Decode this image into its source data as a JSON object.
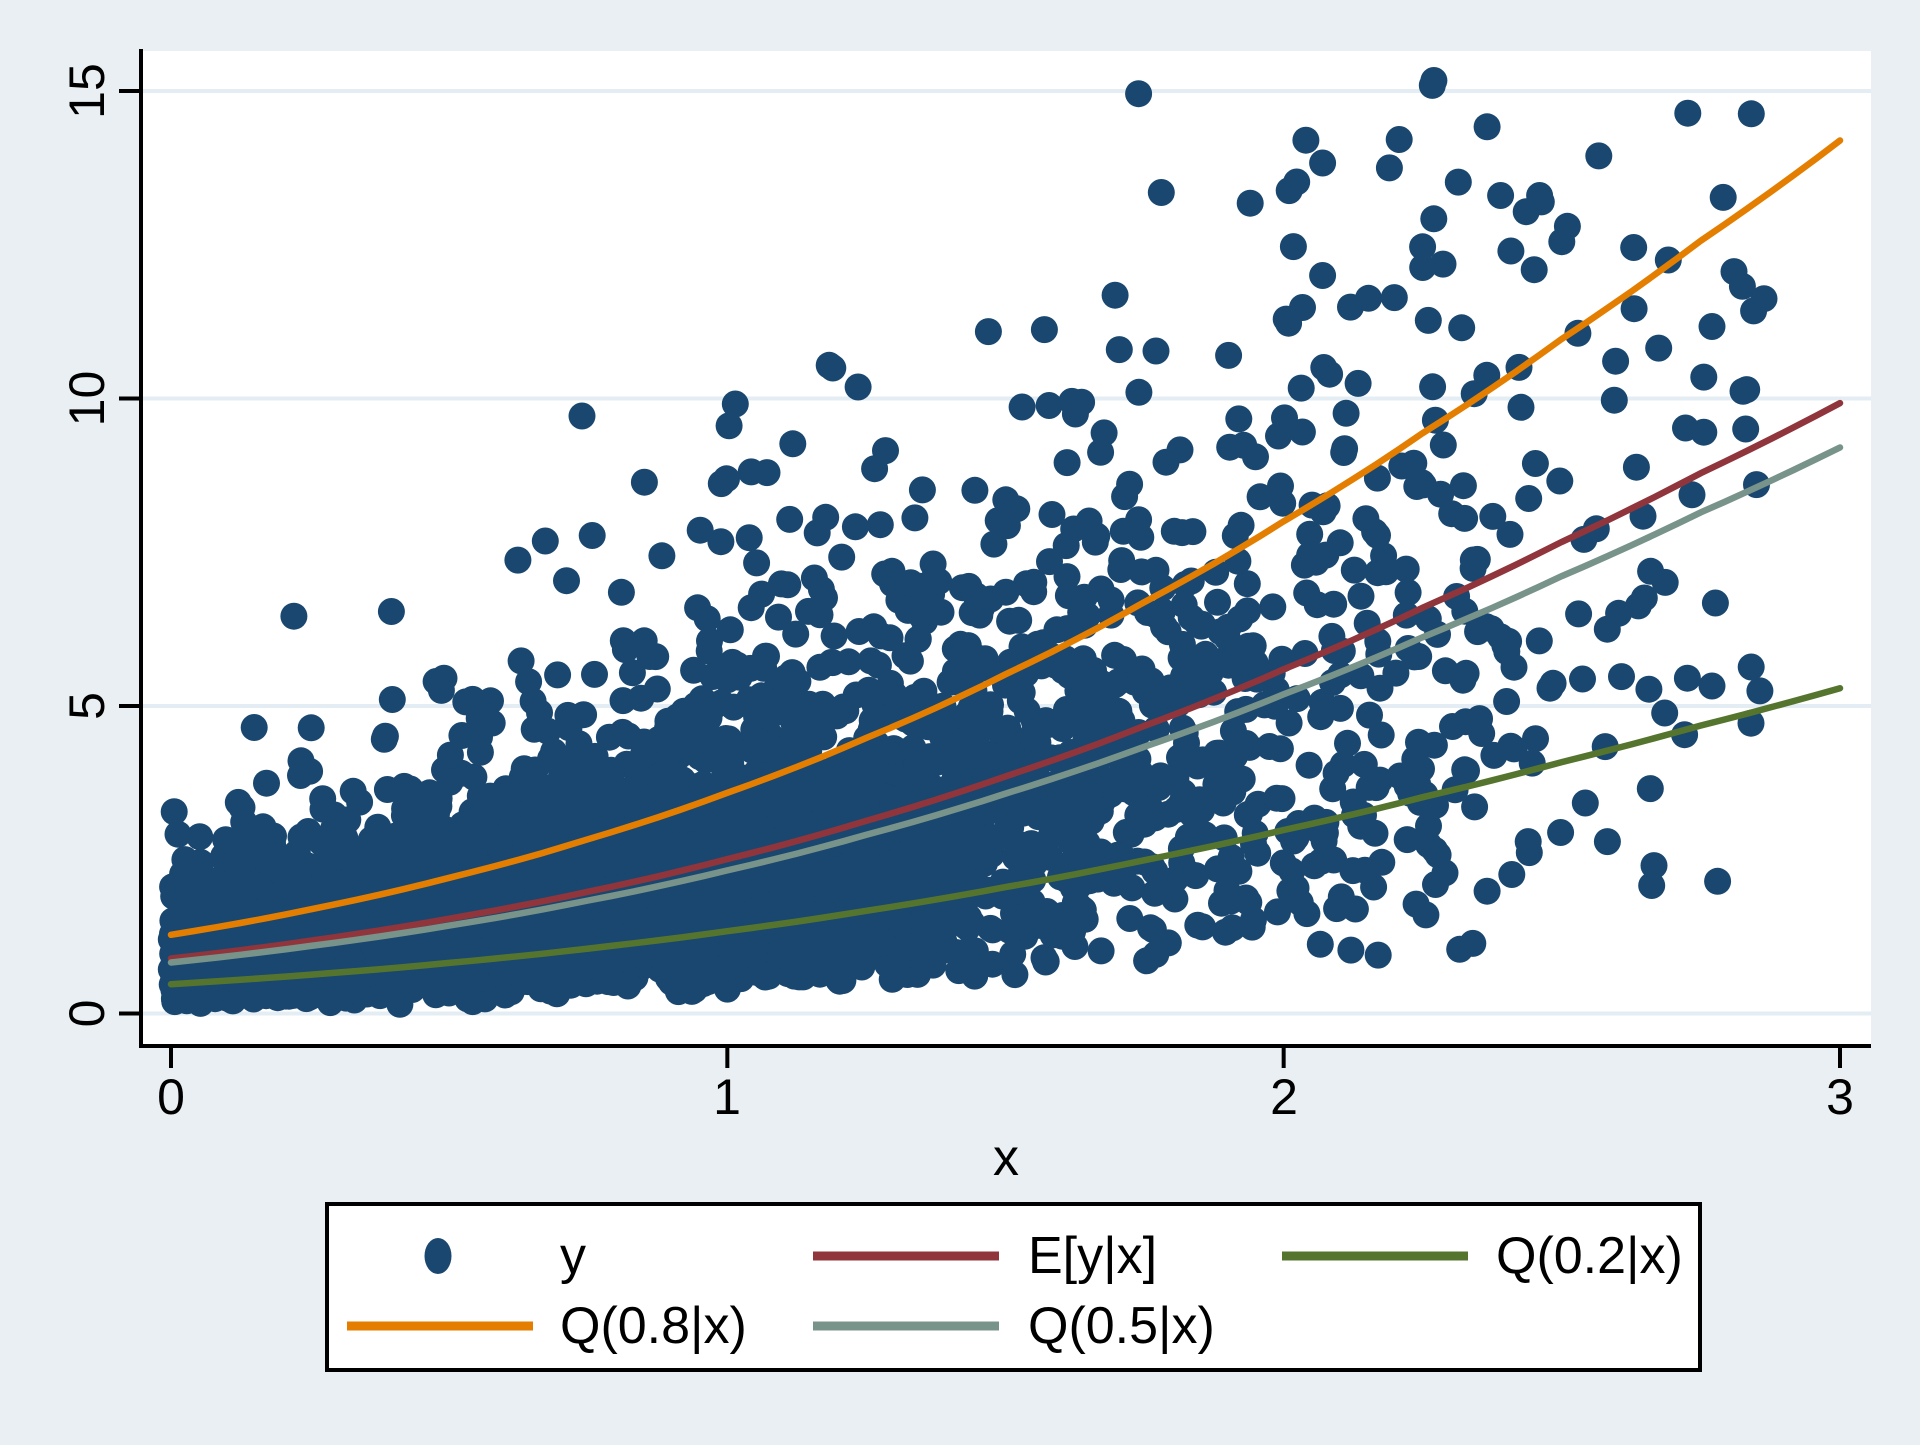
{
  "chart_data": {
    "type": "scatter",
    "title": "",
    "xlabel": "x",
    "ylabel": "",
    "xlim": [
      0,
      3
    ],
    "ylim": [
      0,
      15
    ],
    "grid": "horizontal-only",
    "x_ticks": [
      0,
      1,
      2,
      3
    ],
    "x_tick_labels": [
      "0",
      "1",
      "2",
      "3"
    ],
    "y_ticks": [
      0,
      5,
      10,
      15
    ],
    "y_tick_labels": [
      "0",
      "5",
      "10",
      "15"
    ],
    "colors": {
      "background": "#E9EFF2",
      "plot_background": "#FFFFFF",
      "gridline": "#E3EDF3",
      "axis": "#000000"
    },
    "legend": {
      "position": "bottom-center",
      "border": true,
      "rows": [
        [
          "y",
          "E[y|x]",
          "Q(0.2|x)"
        ],
        [
          "Q(0.8|x)",
          "Q(0.5|x)"
        ]
      ]
    },
    "series": [
      {
        "key": "y-points",
        "name": "y",
        "type": "scatter",
        "marker": "circle",
        "color": "#1A476F",
        "n": 4600,
        "generator": {
          "seed": 424242,
          "x_distribution": "half-normal",
          "x_sigma": 1.06,
          "x_max": 2.87,
          "model": "y = 0.83*exp(1.1455*x - 0.1145*x^2)*exp(sigma*z), sigma = 0.66 if z<0 else 0.515",
          "median_scale": 0.83,
          "growth_linear": 1.1455,
          "growth_quad": -0.1145,
          "sigma_low": 0.66,
          "sigma_high": 0.515,
          "y_min": 0.03,
          "y_max": 15.28
        },
        "outlier_points": [
          [
            2.27,
            15.17
          ],
          [
            2.04,
            14.2
          ],
          [
            2.07,
            13.83
          ],
          [
            2.19,
            13.75
          ],
          [
            1.78,
            13.35
          ],
          [
            2.01,
            13.38
          ],
          [
            2.39,
            13.3
          ],
          [
            2.46,
            13.3
          ],
          [
            2.79,
            13.27
          ],
          [
            2.51,
            12.8
          ],
          [
            2.5,
            12.55
          ],
          [
            2.25,
            12.13
          ],
          [
            2.07,
            12.0
          ],
          [
            1.57,
            11.12
          ],
          [
            2.26,
            11.27
          ],
          [
            2.32,
            11.15
          ],
          [
            2.63,
            11.46
          ],
          [
            2.77,
            11.17
          ],
          [
            2.85,
            8.6
          ],
          [
            2.84,
            4.72
          ],
          [
            2.78,
            2.15
          ],
          [
            2.41,
            2.26
          ],
          [
            2.34,
            1.14
          ],
          [
            2.17,
            0.95
          ]
        ]
      },
      {
        "key": "mean-line",
        "name": "E[y|x]",
        "type": "line",
        "color": "#90353B",
        "x": [
          0,
          0.25,
          0.5,
          0.75,
          1,
          1.25,
          1.5,
          1.75,
          2,
          2.25,
          2.5,
          2.75,
          3
        ],
        "y": [
          0.895,
          1.183,
          1.542,
          1.981,
          2.51,
          3.133,
          3.856,
          4.678,
          5.596,
          6.598,
          7.669,
          8.787,
          9.925
        ]
      },
      {
        "key": "q02-line",
        "name": "Q(0.2|x)",
        "type": "line",
        "color": "#55752F",
        "x": [
          0,
          0.25,
          0.5,
          0.75,
          1,
          1.25,
          1.5,
          1.75,
          2,
          2.25,
          2.5,
          2.75,
          3
        ],
        "y": [
          0.477,
          0.631,
          0.822,
          1.056,
          1.338,
          1.67,
          2.055,
          2.493,
          2.983,
          3.517,
          4.088,
          4.683,
          5.29
        ]
      },
      {
        "key": "q08-line",
        "name": "Q(0.8|x)",
        "type": "line",
        "color": "#E37E00",
        "x": [
          0,
          0.25,
          0.5,
          0.75,
          1,
          1.25,
          1.5,
          1.75,
          2,
          2.25,
          2.5,
          2.75,
          3
        ],
        "y": [
          1.28,
          1.692,
          2.206,
          2.834,
          3.589,
          4.481,
          5.515,
          6.691,
          8.003,
          9.437,
          10.969,
          12.566,
          14.195
        ]
      },
      {
        "key": "q05-line",
        "name": "Q(0.5|x)",
        "type": "line",
        "color": "#78938A",
        "x": [
          0,
          0.25,
          0.5,
          0.75,
          1,
          1.25,
          1.5,
          1.75,
          2,
          2.25,
          2.5,
          2.75,
          3
        ],
        "y": [
          0.83,
          1.097,
          1.43,
          1.837,
          2.327,
          2.906,
          3.576,
          4.339,
          5.19,
          6.119,
          7.112,
          8.149,
          9.204
        ]
      }
    ]
  }
}
